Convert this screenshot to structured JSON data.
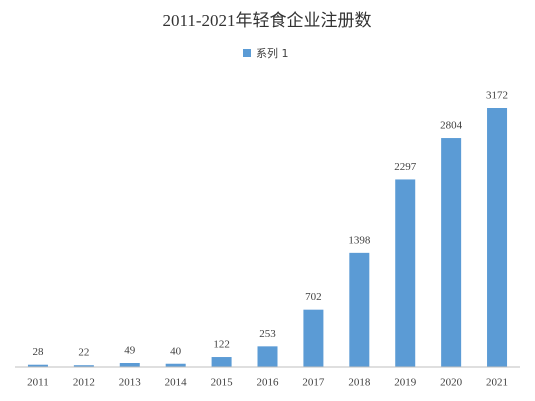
{
  "chart_data": {
    "type": "bar",
    "title": "2011-2021年轻食企业注册数",
    "categories": [
      "2011",
      "2012",
      "2013",
      "2014",
      "2015",
      "2016",
      "2017",
      "2018",
      "2019",
      "2020",
      "2021"
    ],
    "series": [
      {
        "name": "系列 1",
        "color": "#5b9bd5",
        "values": [
          28,
          22,
          49,
          40,
          122,
          253,
          702,
          1398,
          2297,
          2804,
          3172
        ]
      }
    ],
    "legend": "top"
  }
}
